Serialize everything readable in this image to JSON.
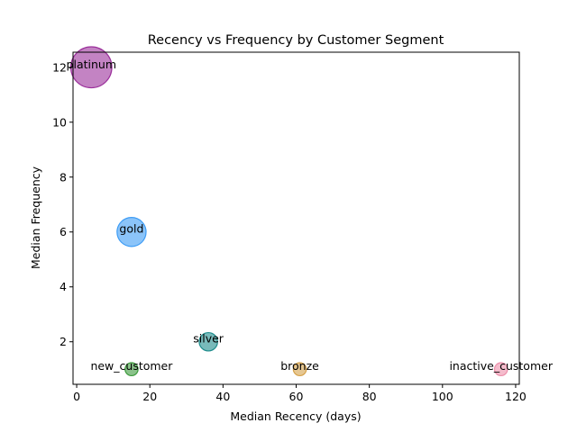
{
  "chart_data": {
    "type": "scatter",
    "title": "Recency vs Frequency by Customer Segment",
    "xlabel": "Median Recency (days)",
    "ylabel": "Median Frequency",
    "xlim": [
      -1,
      121
    ],
    "ylim": [
      0.45,
      12.55
    ],
    "xticks": [
      0,
      20,
      40,
      60,
      80,
      100,
      120
    ],
    "yticks": [
      2,
      4,
      6,
      8,
      10,
      12
    ],
    "grid": false,
    "points": [
      {
        "label": "platinum",
        "x": 4,
        "y": 12,
        "size": 1000,
        "color": "#9b309b"
      },
      {
        "label": "gold",
        "x": 15,
        "y": 6,
        "size": 500,
        "color": "#3d9cf5"
      },
      {
        "label": "silver",
        "x": 36,
        "y": 2,
        "size": 200,
        "color": "#1e8c8c"
      },
      {
        "label": "bronze",
        "x": 61,
        "y": 1,
        "size": 100,
        "color": "#d6a24a"
      },
      {
        "label": "new_customer",
        "x": 15,
        "y": 1,
        "size": 100,
        "color": "#3c9a3c"
      },
      {
        "label": "inactive_customer",
        "x": 116,
        "y": 1,
        "size": 100,
        "color": "#ec8faa"
      }
    ]
  }
}
